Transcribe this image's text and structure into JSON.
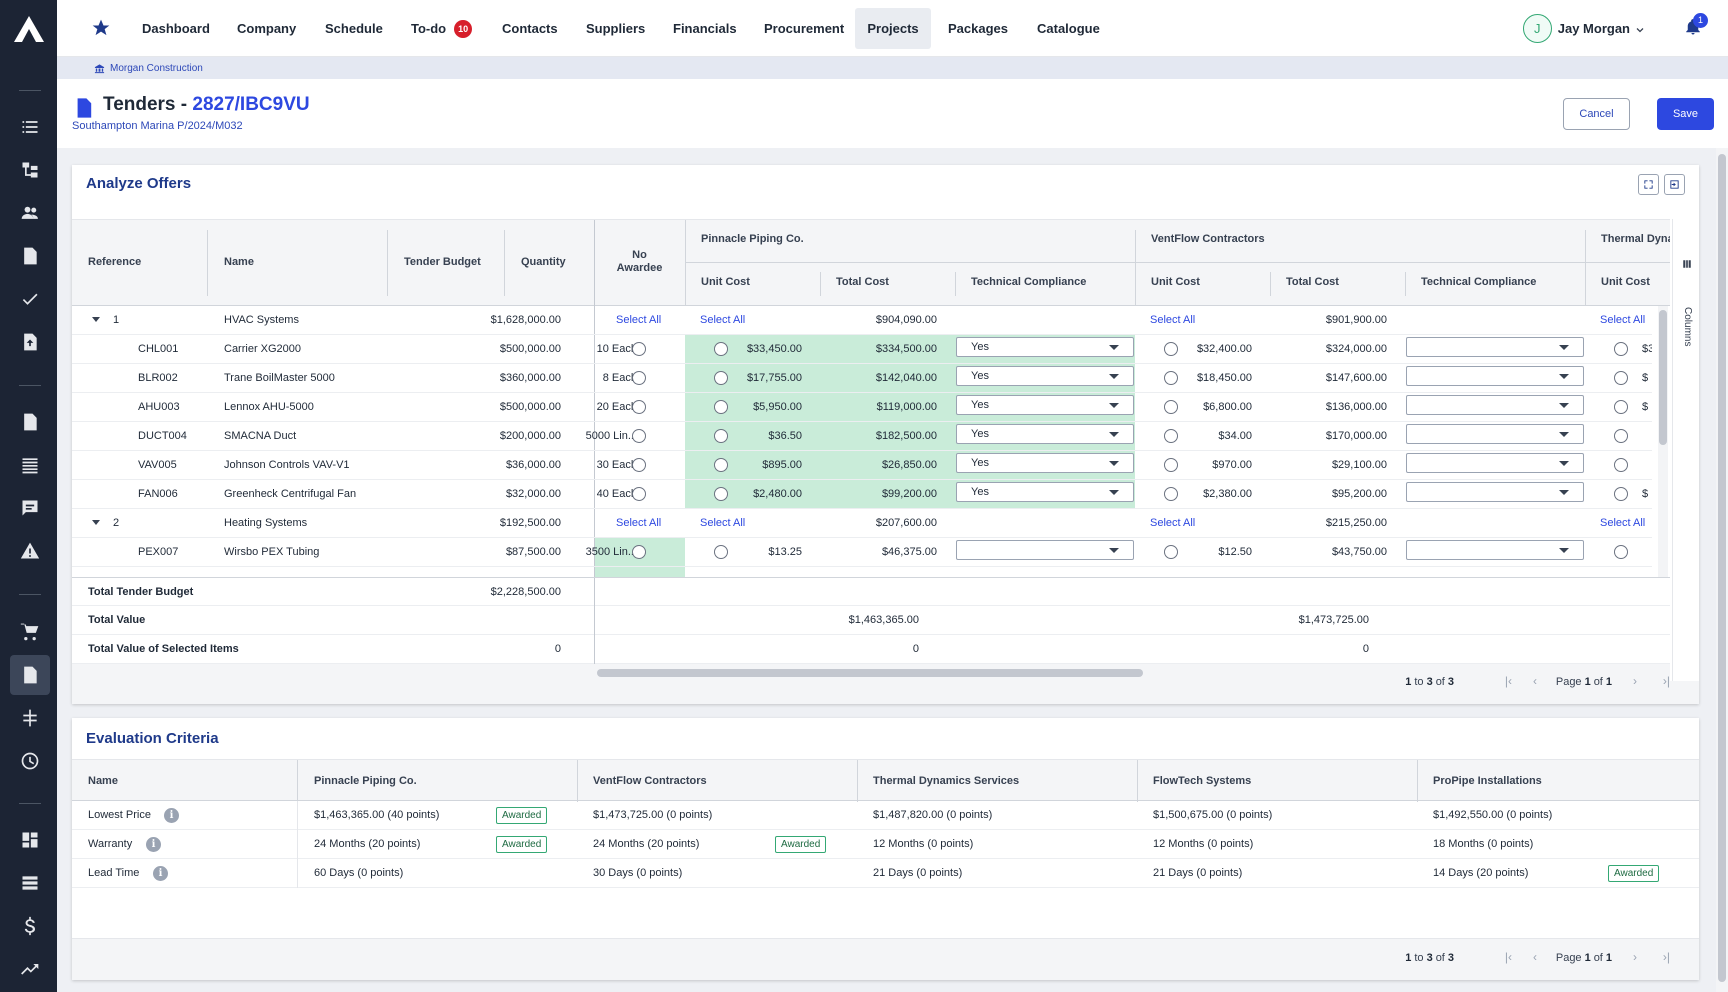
{
  "nav": {
    "items": [
      "Dashboard",
      "Company",
      "Schedule",
      "To-do",
      "Contacts",
      "Suppliers",
      "Financials",
      "Procurement",
      "Projects",
      "Packages",
      "Catalogue"
    ],
    "todo_badge": "10",
    "active": "Projects",
    "user_initial": "J",
    "user_name": "Jay Morgan",
    "notif_count": "1"
  },
  "breadcrumb": "Morgan Construction",
  "header": {
    "title_prefix": "Tenders - ",
    "title_code": "2827/IBC9VU",
    "subtitle": "Southampton Marina P/2024/M032",
    "cancel": "Cancel",
    "save": "Save"
  },
  "offers": {
    "title": "Analyze Offers",
    "columns_label": "Columns",
    "headers": {
      "reference": "Reference",
      "name": "Name",
      "budget": "Tender Budget",
      "quantity": "Quantity",
      "no_awardee_1": "No",
      "no_awardee_2": "Awardee",
      "unit_cost": "Unit Cost",
      "total_cost": "Total Cost",
      "tech": "Technical Compliance"
    },
    "suppliers": [
      "Pinnacle Piping Co.",
      "VentFlow Contractors",
      "Thermal Dyna"
    ],
    "select_all": "Select All",
    "groups": [
      {
        "num": "1",
        "name": "HVAC Systems",
        "budget": "$1,628,000.00",
        "s1_total": "$904,090.00",
        "s2_total": "$901,900.00"
      },
      {
        "num": "2",
        "name": "Heating Systems",
        "budget": "$192,500.00",
        "s1_total": "$207,600.00",
        "s2_total": "$215,250.00"
      }
    ],
    "rows": [
      {
        "ref": "CHL001",
        "name": "Carrier XG2000",
        "budget": "$500,000.00",
        "qty": "10 Each",
        "s1_unit": "$33,450.00",
        "s1_total": "$334,500.00",
        "s1_tech": "Yes",
        "s2_unit": "$32,400.00",
        "s2_total": "$324,000.00",
        "s3": "$3"
      },
      {
        "ref": "BLR002",
        "name": "Trane BoilMaster 5000",
        "budget": "$360,000.00",
        "qty": "8 Each",
        "s1_unit": "$17,755.00",
        "s1_total": "$142,040.00",
        "s1_tech": "Yes",
        "s2_unit": "$18,450.00",
        "s2_total": "$147,600.00",
        "s3": "$"
      },
      {
        "ref": "AHU003",
        "name": "Lennox AHU-5000",
        "budget": "$500,000.00",
        "qty": "20 Each",
        "s1_unit": "$5,950.00",
        "s1_total": "$119,000.00",
        "s1_tech": "Yes",
        "s2_unit": "$6,800.00",
        "s2_total": "$136,000.00",
        "s3": "$"
      },
      {
        "ref": "DUCT004",
        "name": "SMACNA Duct",
        "budget": "$200,000.00",
        "qty": "5000 Lin...",
        "s1_unit": "$36.50",
        "s1_total": "$182,500.00",
        "s1_tech": "Yes",
        "s2_unit": "$34.00",
        "s2_total": "$170,000.00",
        "s3": ""
      },
      {
        "ref": "VAV005",
        "name": "Johnson Controls VAV-V1",
        "budget": "$36,000.00",
        "qty": "30 Each",
        "s1_unit": "$895.00",
        "s1_total": "$26,850.00",
        "s1_tech": "Yes",
        "s2_unit": "$970.00",
        "s2_total": "$29,100.00",
        "s3": ""
      },
      {
        "ref": "FAN006",
        "name": "Greenheck Centrifugal Fan",
        "budget": "$32,000.00",
        "qty": "40 Each",
        "s1_unit": "$2,480.00",
        "s1_total": "$99,200.00",
        "s1_tech": "Yes",
        "s2_unit": "$2,380.00",
        "s2_total": "$95,200.00",
        "s3": "$"
      },
      {
        "ref": "PEX007",
        "name": "Wirsbo PEX Tubing",
        "budget": "$87,500.00",
        "qty": "3500 Lin...",
        "s1_unit": "$13.25",
        "s1_total": "$46,375.00",
        "s1_tech": "",
        "s2_unit": "$12.50",
        "s2_total": "$43,750.00",
        "s3": ""
      }
    ],
    "summary": {
      "total_budget_label": "Total Tender Budget",
      "total_budget": "$2,228,500.00",
      "total_value_label": "Total Value",
      "s1_value": "$1,463,365.00",
      "s2_value": "$1,473,725.00",
      "selected_label": "Total Value of Selected Items",
      "selected_budget": "0",
      "s1_selected": "0",
      "s2_selected": "0"
    },
    "pagination": {
      "from": "1",
      "to": "3",
      "of": "3",
      "page": "1",
      "pages": "1",
      "to_word": "to",
      "of_word": "of",
      "page_word": "Page"
    }
  },
  "criteria": {
    "title": "Evaluation Criteria",
    "headers": [
      "Name",
      "Pinnacle Piping Co.",
      "VentFlow Contractors",
      "Thermal Dynamics Services",
      "FlowTech Systems",
      "ProPipe Installations"
    ],
    "awarded": "Awarded",
    "rows": [
      {
        "name": "Lowest Price",
        "vals": [
          "$1,463,365.00 (40 points)",
          "$1,473,725.00 (0 points)",
          "$1,487,820.00 (0 points)",
          "$1,500,675.00 (0 points)",
          "$1,492,550.00 (0 points)"
        ],
        "awarded_col": 0
      },
      {
        "name": "Warranty",
        "vals": [
          "24 Months (20 points)",
          "24 Months (20 points)",
          "12 Months (0 points)",
          "12 Months (0 points)",
          "18 Months (0 points)"
        ],
        "awarded_col": "0,1"
      },
      {
        "name": "Lead Time",
        "vals": [
          "60 Days (0 points)",
          "30 Days (0 points)",
          "21 Days (0 points)",
          "21 Days (0 points)",
          "14 Days (20 points)"
        ],
        "awarded_col": 4
      }
    ],
    "pagination": {
      "from": "1",
      "to": "3",
      "of": "3",
      "page": "1",
      "pages": "1",
      "to_word": "to",
      "of_word": "of",
      "page_word": "Page"
    }
  },
  "colors": {
    "accent": "#2d48e0",
    "sidebar": "#1c2434",
    "awarded_green": "#c9ecd9",
    "badge_red": "#d71f2b"
  }
}
